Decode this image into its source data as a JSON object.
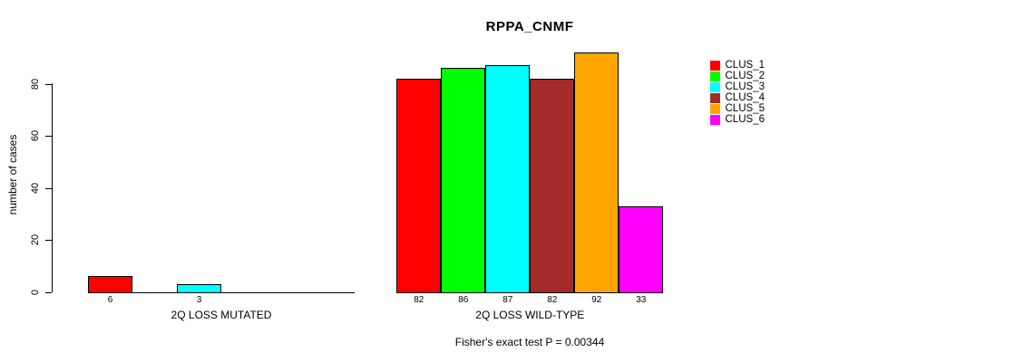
{
  "chart_data": {
    "type": "bar",
    "title": "RPPA_CNMF",
    "ylabel": "number of cases",
    "yticks": [
      0,
      20,
      40,
      60,
      80
    ],
    "ylim": [
      0,
      95
    ],
    "grid": false,
    "legend_position": "right",
    "legend": [
      {
        "label": "CLUS_1",
        "color": "#FF0000"
      },
      {
        "label": "CLUS_2",
        "color": "#00FF00"
      },
      {
        "label": "CLUS_3",
        "color": "#00FFFF"
      },
      {
        "label": "CLUS_4",
        "color": "#A52A2A"
      },
      {
        "label": "CLUS_5",
        "color": "#FFA500"
      },
      {
        "label": "CLUS_6",
        "color": "#FF00FF"
      }
    ],
    "groups": [
      {
        "label": "2Q LOSS MUTATED",
        "values": [
          6,
          0,
          3,
          0,
          0,
          0
        ],
        "show_zero_value_labels": false
      },
      {
        "label": "2Q LOSS WILD-TYPE",
        "values": [
          82,
          86,
          87,
          82,
          92,
          33
        ],
        "show_zero_value_labels": true
      }
    ],
    "annotation": "Fisher's exact test P = 0.00344"
  }
}
